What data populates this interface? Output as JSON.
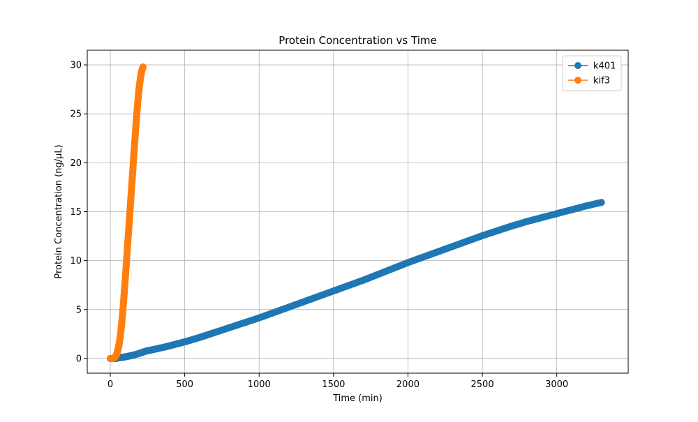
{
  "chart_data": {
    "type": "line",
    "title": "Protein Concentration vs Time",
    "xlabel": "Time (min)",
    "ylabel": "Protein Concentration (ng/µL)",
    "xlim": [
      -155,
      3480
    ],
    "ylim": [
      -1.5,
      31.5
    ],
    "xticks": [
      0,
      500,
      1000,
      1500,
      2000,
      2500,
      3000
    ],
    "yticks": [
      0,
      5,
      10,
      15,
      20,
      25,
      30
    ],
    "grid": true,
    "legend_position": "top-right",
    "marker": "circle",
    "series": [
      {
        "name": "k401",
        "color": "#1f77b4",
        "x": [
          0,
          10,
          20,
          30,
          40,
          50,
          60,
          80,
          100,
          120,
          150,
          180,
          210,
          240,
          270,
          300,
          350,
          400,
          450,
          500,
          550,
          600,
          650,
          700,
          800,
          900,
          1000,
          1100,
          1200,
          1300,
          1400,
          1500,
          1600,
          1700,
          1800,
          1900,
          2000,
          2100,
          2200,
          2300,
          2400,
          2500,
          2600,
          2700,
          2800,
          2900,
          3000,
          3100,
          3200,
          3300
        ],
        "y": [
          0,
          0,
          0,
          0,
          0.02,
          0.05,
          0.08,
          0.12,
          0.17,
          0.23,
          0.32,
          0.45,
          0.6,
          0.76,
          0.85,
          0.95,
          1.12,
          1.3,
          1.5,
          1.7,
          1.92,
          2.15,
          2.4,
          2.65,
          3.15,
          3.65,
          4.15,
          4.7,
          5.25,
          5.8,
          6.35,
          6.9,
          7.45,
          8.0,
          8.6,
          9.2,
          9.8,
          10.35,
          10.9,
          11.45,
          12.0,
          12.55,
          13.05,
          13.55,
          14.0,
          14.4,
          14.8,
          15.2,
          15.6,
          15.95
        ]
      },
      {
        "name": "kif3",
        "color": "#ff7f0e",
        "x": [
          0,
          5,
          10,
          15,
          20,
          25,
          30,
          35,
          40,
          45,
          50,
          55,
          60,
          65,
          70,
          75,
          80,
          85,
          90,
          95,
          100,
          105,
          110,
          115,
          120,
          125,
          130,
          135,
          140,
          145,
          150,
          155,
          160,
          165,
          170,
          175,
          180,
          185,
          190,
          195,
          200,
          205,
          210,
          215,
          220
        ],
        "y": [
          0,
          0,
          0,
          0,
          0.02,
          0.06,
          0.12,
          0.2,
          0.35,
          0.55,
          0.8,
          1.15,
          1.55,
          2.05,
          2.65,
          3.35,
          4.15,
          5.05,
          6.0,
          7.0,
          8.05,
          9.1,
          10.2,
          11.3,
          12.4,
          13.5,
          14.6,
          15.7,
          16.8,
          17.9,
          19.0,
          20.1,
          21.2,
          22.3,
          23.4,
          24.4,
          25.4,
          26.3,
          27.1,
          27.8,
          28.4,
          28.9,
          29.3,
          29.6,
          29.8
        ]
      }
    ]
  }
}
